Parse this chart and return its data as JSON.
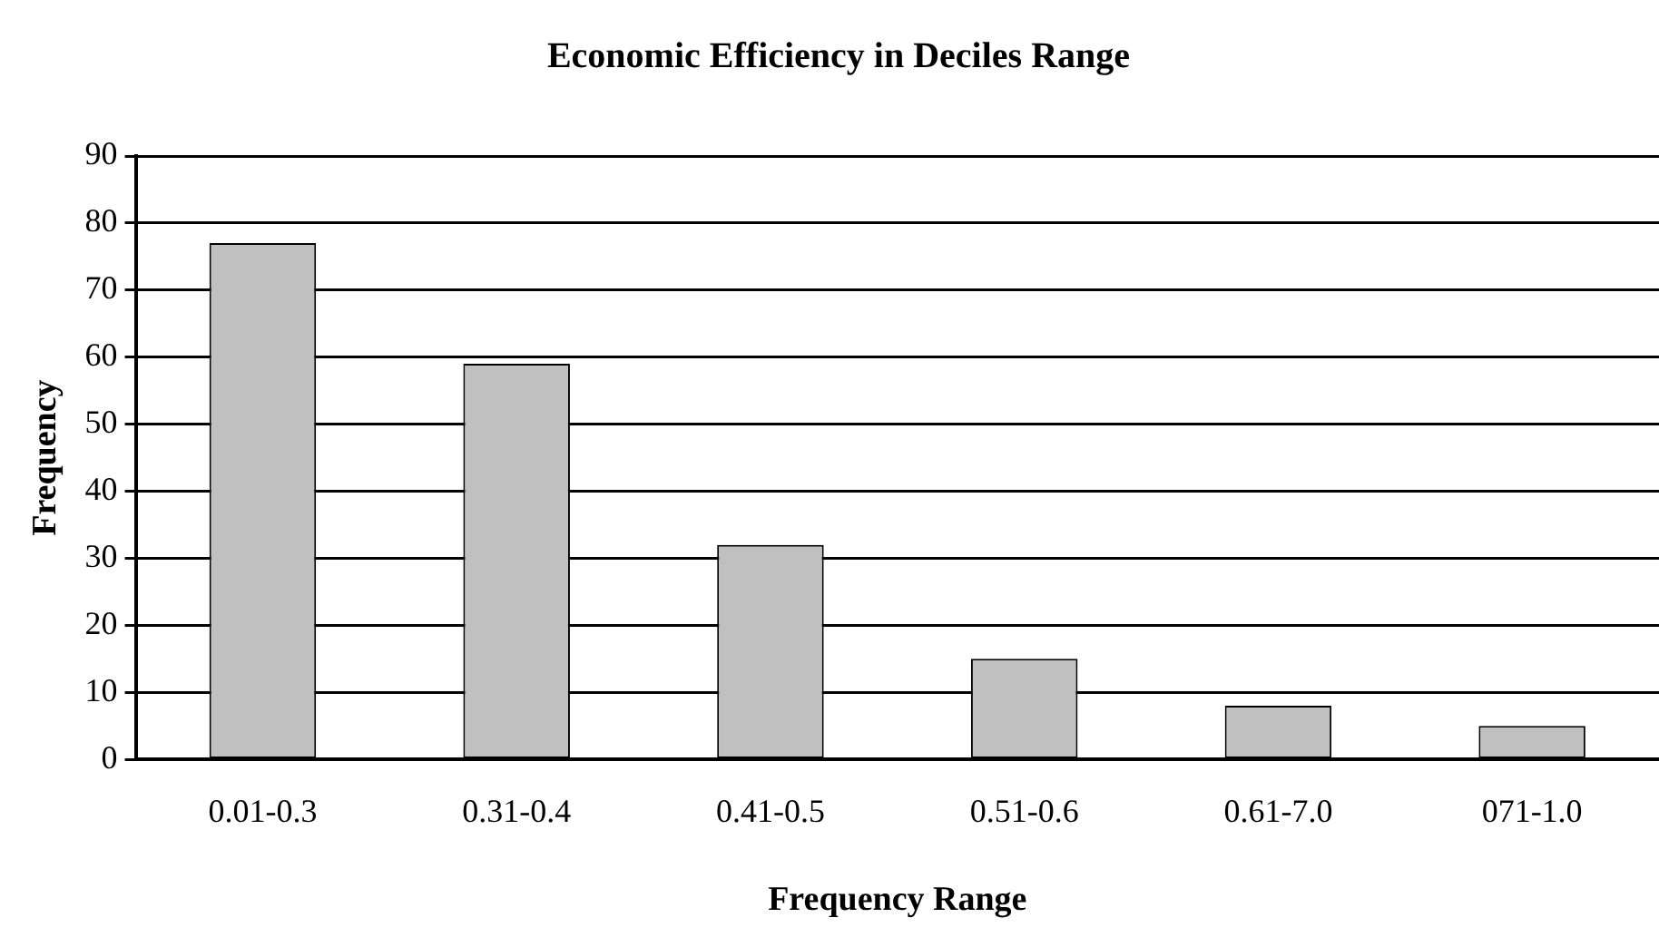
{
  "chart_data": {
    "type": "bar",
    "title": "Economic Efficiency in Deciles Range",
    "xlabel": "Frequency Range",
    "ylabel": "Frequency",
    "categories": [
      "0.01-0.3",
      "0.31-0.4",
      "0.41-0.5",
      "0.51-0.6",
      "0.61-7.0",
      "071-1.0"
    ],
    "values": [
      77,
      59,
      32,
      15,
      8,
      5
    ],
    "color": "#c0c0c0",
    "ylim": [
      0,
      90
    ],
    "yticks": [
      0,
      10,
      20,
      30,
      40,
      50,
      60,
      70,
      80,
      90
    ],
    "grid": "y",
    "legend": false
  }
}
